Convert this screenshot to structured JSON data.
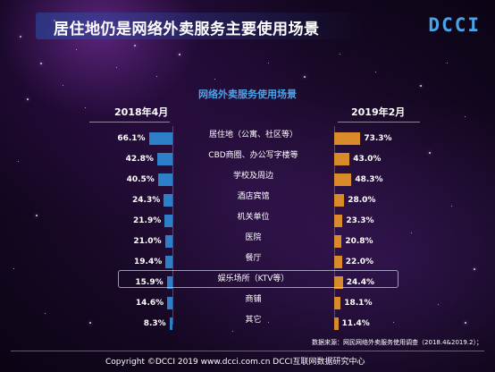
{
  "header": {
    "title": "居住地仍是网络外卖服务主要使用场景",
    "logo": "DCCI"
  },
  "chart_data": {
    "type": "bar",
    "title": "网络外卖服务使用场景",
    "categories": [
      "居住地（公寓、社区等）",
      "CBD商圈、办公写字楼等",
      "学校及周边",
      "酒店宾馆",
      "机关单位",
      "医院",
      "餐厅",
      "娱乐场所（KTV等）",
      "商铺",
      "其它"
    ],
    "series": [
      {
        "name": "2018年4月",
        "values": [
          66.1,
          42.8,
          40.5,
          24.3,
          21.9,
          21.0,
          19.4,
          15.9,
          14.6,
          8.3
        ],
        "labels": [
          "66.1%",
          "42.8%",
          "40.5%",
          "24.3%",
          "21.9%",
          "21.0%",
          "19.4%",
          "15.9%",
          "14.6%",
          "8.3%"
        ],
        "color": "#2d7fc9"
      },
      {
        "name": "2019年2月",
        "values": [
          73.3,
          43.0,
          48.3,
          28.0,
          23.3,
          20.8,
          22.0,
          24.4,
          18.1,
          11.4
        ],
        "labels": [
          "73.3%",
          "43.0%",
          "48.3%",
          "28.0%",
          "23.3%",
          "20.8%",
          "22.0%",
          "24.4%",
          "18.1%",
          "11.4%"
        ],
        "color": "#d98a2a"
      }
    ],
    "highlighted_category": "娱乐场所（KTV等）",
    "unit": "%"
  },
  "footer": {
    "source": "数据来源：网民网络外卖服务使用调查（2018.4&2019.2）；",
    "copyright": "Copyright ©DCCI 2019   www.dcci.com.cn   DCCI互联网数据研究中心"
  },
  "colors": {
    "left_bar": "#2d7fc9",
    "right_bar": "#d98a2a",
    "accent": "#4aa3e8"
  }
}
